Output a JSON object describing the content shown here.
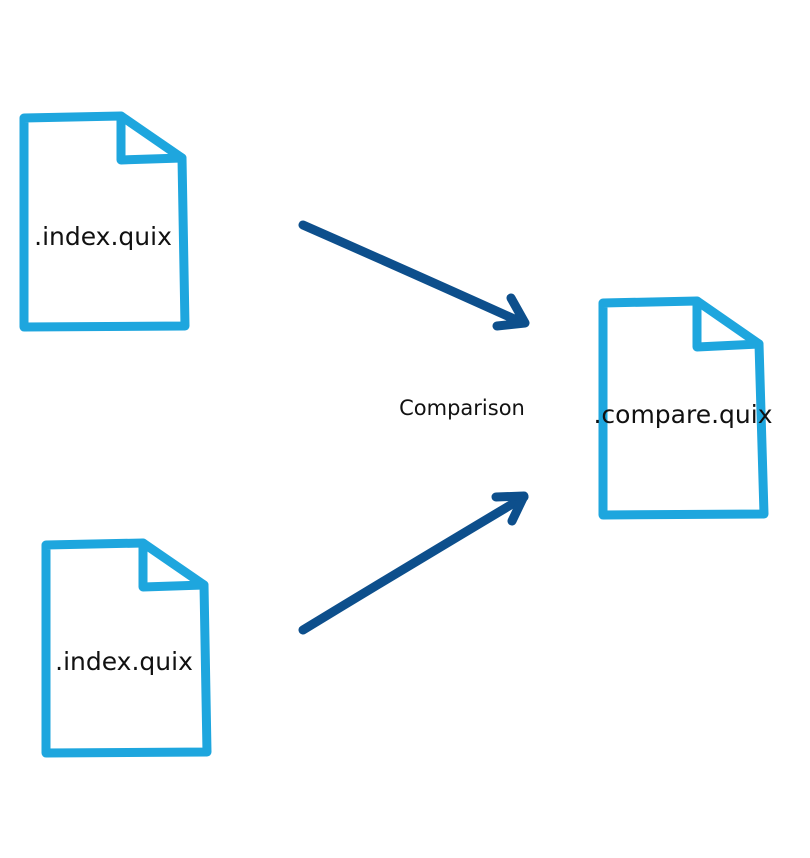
{
  "diagram": {
    "colors": {
      "file_outline": "#1ea6de",
      "arrow": "#0d4f8c",
      "text": "#111111",
      "background": "#ffffff"
    },
    "files": {
      "input_top": {
        "label": ".index.quix",
        "icon": "file-icon"
      },
      "input_bottom": {
        "label": ".index.quix",
        "icon": "file-icon"
      },
      "output": {
        "label": ".compare.quix",
        "icon": "file-icon"
      }
    },
    "operation": {
      "label": "Comparison"
    },
    "arrows": [
      {
        "from": "input_top",
        "to": "output"
      },
      {
        "from": "input_bottom",
        "to": "output"
      }
    ]
  }
}
